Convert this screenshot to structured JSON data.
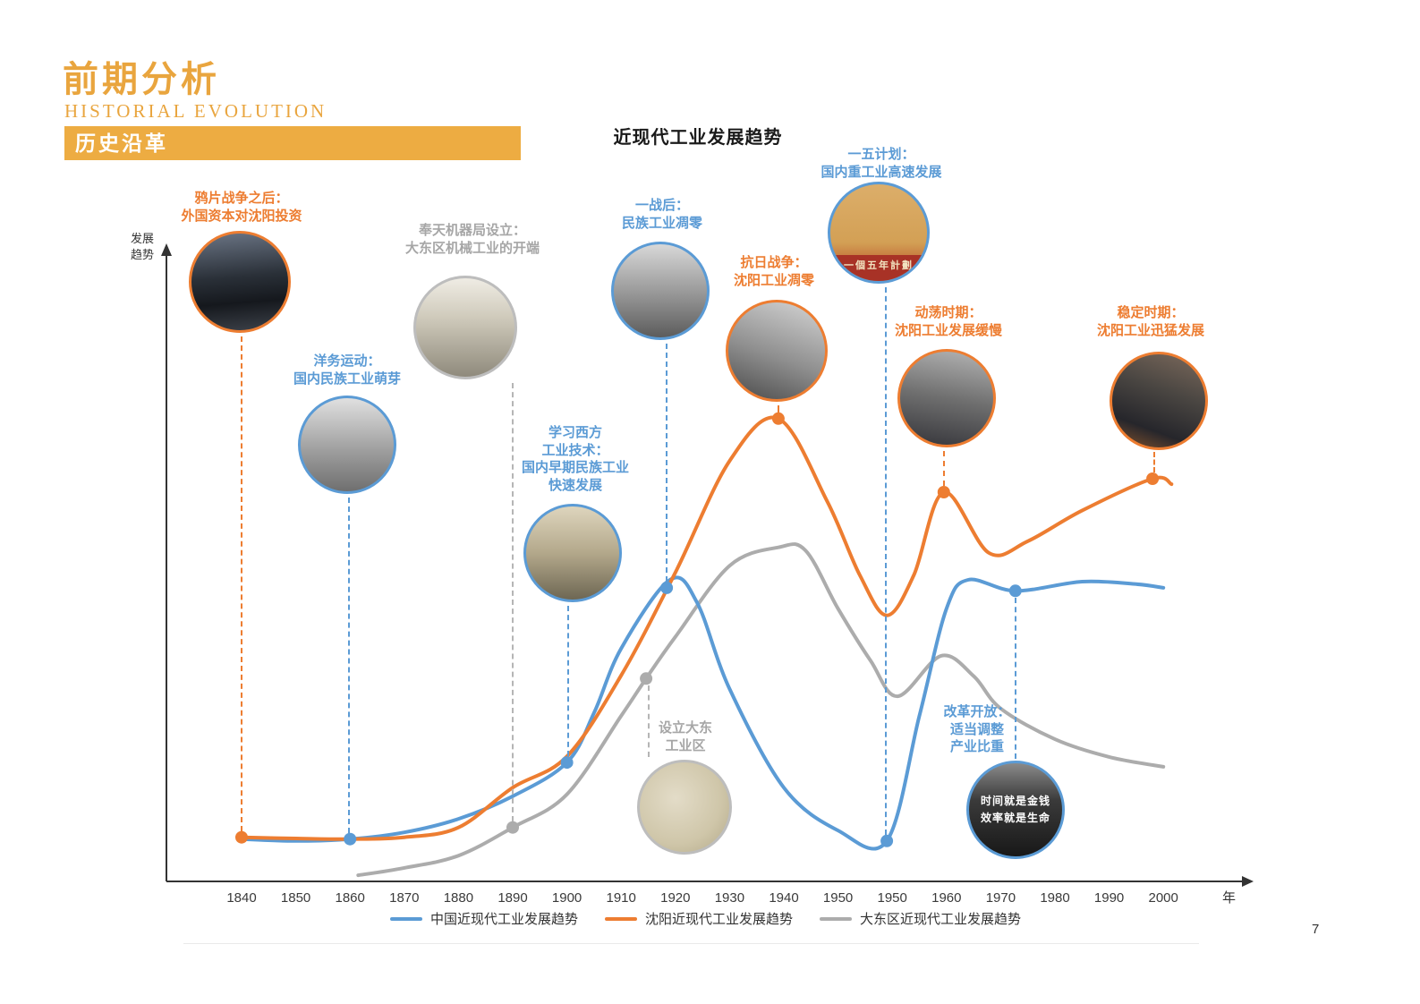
{
  "header": {
    "title": "前期分析",
    "subtitle": "HISTORIAL EVOLUTION",
    "section_banner": "历史沿革"
  },
  "page_number": "7",
  "colors": {
    "accent_orange": "#E9A53E",
    "series_china_blue": "#5B9BD5",
    "series_shenyang_orange": "#ED7D31",
    "series_dadong_gray": "#ACACAC"
  },
  "chart_data": {
    "type": "line",
    "title": "近现代工业发展趋势",
    "x_axis_label": "年",
    "y_axis_label": "发展\n趋势",
    "x_ticks": [
      "1840",
      "1850",
      "1860",
      "1870",
      "1880",
      "1890",
      "1900",
      "1910",
      "1920",
      "1930",
      "1940",
      "1950",
      "1950",
      "1960",
      "1970",
      "1980",
      "1990",
      "2000"
    ],
    "ylim": [
      0,
      100
    ],
    "grid": false,
    "legend_position": "bottom",
    "series": [
      {
        "name": "中国近现代工业发展趋势",
        "color": "#5B9BD5",
        "points": [
          [
            0,
            6.9
          ],
          [
            1,
            6.6
          ],
          [
            2,
            6.9
          ],
          [
            3,
            8.0
          ],
          [
            4,
            10.2
          ],
          [
            5,
            13.9
          ],
          [
            6,
            19.4
          ],
          [
            6.5,
            27.5
          ],
          [
            7,
            38.0
          ],
          [
            7.9,
            49.2
          ],
          [
            8.4,
            45.5
          ],
          [
            9,
            31.4
          ],
          [
            10,
            15.3
          ],
          [
            11,
            8.3
          ],
          [
            11.9,
            6.6
          ],
          [
            12.5,
            27.0
          ],
          [
            13,
            44.5
          ],
          [
            13.4,
            49.2
          ],
          [
            14.27,
            47.4
          ],
          [
            15.5,
            48.9
          ],
          [
            16.5,
            48.5
          ],
          [
            17,
            47.9
          ]
        ],
        "dots": [
          [
            2,
            6.9
          ],
          [
            6,
            19.4
          ],
          [
            7.84,
            47.9
          ],
          [
            11.9,
            6.6
          ],
          [
            14.27,
            47.4
          ]
        ]
      },
      {
        "name": "沈阳近现代工业发展趋势",
        "color": "#ED7D31",
        "points": [
          [
            0,
            7.2
          ],
          [
            1,
            7.0
          ],
          [
            2,
            6.9
          ],
          [
            3,
            7.2
          ],
          [
            4,
            8.8
          ],
          [
            5,
            15.3
          ],
          [
            6,
            20.4
          ],
          [
            7,
            33.6
          ],
          [
            8,
            50.4
          ],
          [
            9,
            68.6
          ],
          [
            9.9,
            75.5
          ],
          [
            10.8,
            62.0
          ],
          [
            11.4,
            50.0
          ],
          [
            11.9,
            43.4
          ],
          [
            12.4,
            50.0
          ],
          [
            12.95,
            63.5
          ],
          [
            13.78,
            53.6
          ],
          [
            14.5,
            55.5
          ],
          [
            15.5,
            60.5
          ],
          [
            16.8,
            65.7
          ],
          [
            17.15,
            64.8
          ]
        ],
        "dots": [
          [
            0,
            7.2
          ],
          [
            9.9,
            75.5
          ],
          [
            12.95,
            63.5
          ],
          [
            16.8,
            65.7
          ]
        ]
      },
      {
        "name": "大东区近现代工业发展趋势",
        "color": "#ACACAC",
        "points": [
          [
            2.15,
            1.0
          ],
          [
            3,
            2.2
          ],
          [
            4,
            4.2
          ],
          [
            5,
            8.8
          ],
          [
            6,
            14.2
          ],
          [
            7,
            27.0
          ],
          [
            7.46,
            33.1
          ],
          [
            8,
            39.9
          ],
          [
            9,
            51.5
          ],
          [
            9.9,
            54.5
          ],
          [
            10.4,
            54.0
          ],
          [
            11,
            44.5
          ],
          [
            11.6,
            36.0
          ],
          [
            12.1,
            30.2
          ],
          [
            12.9,
            36.8
          ],
          [
            13.5,
            33.5
          ],
          [
            14,
            28.2
          ],
          [
            15,
            23.2
          ],
          [
            16,
            20.3
          ],
          [
            17,
            18.7
          ]
        ],
        "dots": [
          [
            5,
            8.8
          ],
          [
            7.46,
            33.1
          ]
        ]
      }
    ]
  },
  "annotations": [
    {
      "text": "鸦片战争之后：\n外国资本对沈阳投资",
      "color": "#ED7D31"
    },
    {
      "text": "洋务运动：\n国内民族工业萌芽",
      "color": "#5B9BD5"
    },
    {
      "text": "奉天机器局设立：\n大东区机械工业的开端",
      "color": "#A6A6A6"
    },
    {
      "text": "学习西方\n工业技术：\n国内早期民族工业\n快速发展",
      "color": "#5B9BD5"
    },
    {
      "text": "一战后：\n民族工业凋零",
      "color": "#5B9BD5"
    },
    {
      "text": "抗日战争：\n沈阳工业凋零",
      "color": "#ED7D31"
    },
    {
      "text": "一五计划：\n国内重工业高速发展",
      "color": "#5B9BD5",
      "photo_caption": "一個五年計劃"
    },
    {
      "text": "动荡时期：\n沈阳工业发展缓慢",
      "color": "#ED7D31"
    },
    {
      "text": "设立大东\n工业区",
      "color": "#A6A6A6"
    },
    {
      "text": "改革开放：\n适当调整\n产业比重",
      "color": "#5B9BD5",
      "photo_caption": "时间就是金钱\n效率就是生命"
    },
    {
      "text": "稳定时期：\n沈阳工业迅猛发展",
      "color": "#ED7D31"
    }
  ]
}
